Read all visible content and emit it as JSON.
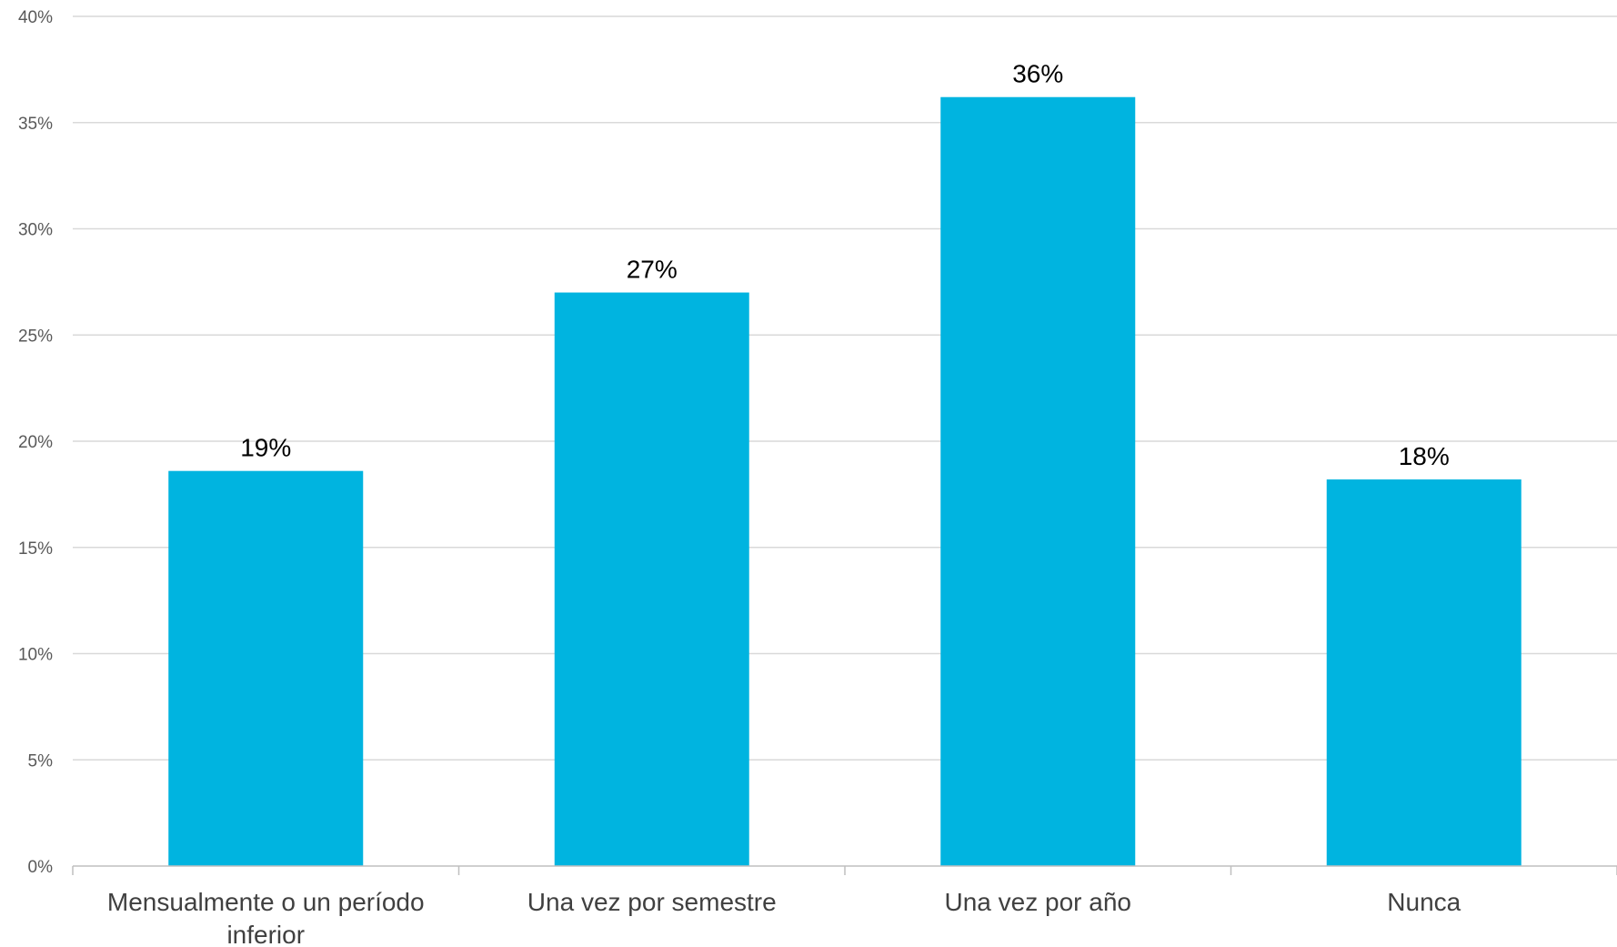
{
  "chart_data": {
    "type": "bar",
    "categories": [
      [
        "Mensualmente o un período",
        "inferior"
      ],
      [
        "Una vez por semestre"
      ],
      [
        "Una vez por año"
      ],
      [
        "Nunca"
      ]
    ],
    "values": [
      18.6,
      27.0,
      36.2,
      18.2
    ],
    "data_labels": [
      "19%",
      "27%",
      "36%",
      "18%"
    ],
    "y_ticks": [
      "0%",
      "5%",
      "10%",
      "15%",
      "20%",
      "25%",
      "30%",
      "35%",
      "40%"
    ],
    "ylim": [
      0,
      40
    ],
    "grid": true,
    "bar_color": "#00B4E0",
    "title": "",
    "xlabel": "",
    "ylabel": ""
  }
}
